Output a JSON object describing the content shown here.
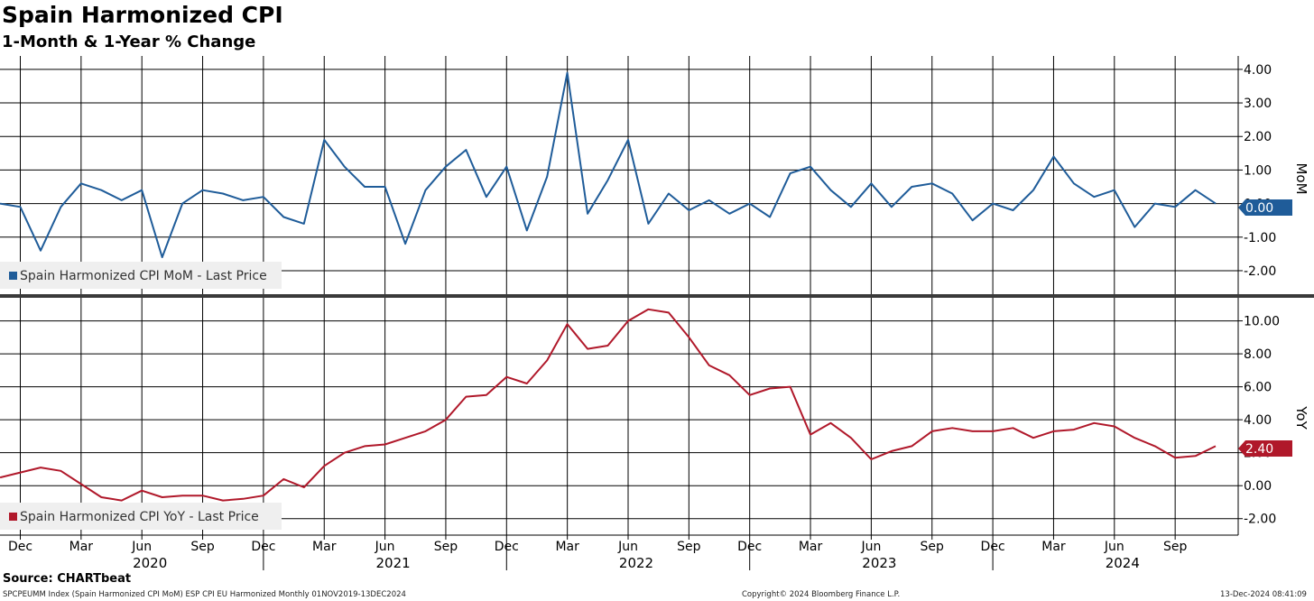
{
  "title": "Spain Harmonized CPI",
  "subtitle": "1-Month & 1-Year % Change",
  "source": "Source: CHARTbeat",
  "footer": {
    "left": "SPCPEUMM Index (Spain Harmonized CPI MoM) ESP CPI EU Harmonized  Monthly 01NOV2019-13DEC2024",
    "center": "Copyright© 2024 Bloomberg Finance L.P.",
    "right": "13-Dec-2024 08:41:09"
  },
  "x_axis": {
    "month_labels": [
      "Dec",
      "Mar",
      "Jun",
      "Sep",
      "Dec",
      "Mar",
      "Jun",
      "Sep",
      "Dec",
      "Mar",
      "Jun",
      "Sep",
      "Dec",
      "Mar",
      "Jun",
      "Sep",
      "Dec",
      "Mar",
      "Jun",
      "Sep"
    ],
    "month_label_dates": [
      "2019-12",
      "2020-03",
      "2020-06",
      "2020-09",
      "2020-12",
      "2021-03",
      "2021-06",
      "2021-09",
      "2021-12",
      "2022-03",
      "2022-06",
      "2022-09",
      "2022-12",
      "2023-03",
      "2023-06",
      "2023-09",
      "2023-12",
      "2024-03",
      "2024-06",
      "2024-09"
    ],
    "year_labels": [
      "2020",
      "2021",
      "2022",
      "2023",
      "2024"
    ],
    "year_label_dates": [
      "2020-06",
      "2021-06",
      "2022-06",
      "2023-06",
      "2024-06"
    ]
  },
  "chart_data": [
    {
      "type": "line",
      "panel": "top",
      "axis_title": "MoM",
      "ylim": [
        -2.7,
        4.4
      ],
      "yticks": [
        -2,
        -1,
        0,
        1,
        2,
        3,
        4
      ],
      "ytick_labels": [
        "-2.00",
        "-1.00",
        "0.00",
        "1.00",
        "2.00",
        "3.00",
        "4.00"
      ],
      "grid": true,
      "legend_position": "bottom-left",
      "last_value_label": "0.00",
      "series": [
        {
          "name": "Spain Harmonized CPI MoM - Last Price",
          "color": "#1f5c99",
          "x": [
            "2019-11",
            "2019-12",
            "2020-01",
            "2020-02",
            "2020-03",
            "2020-04",
            "2020-05",
            "2020-06",
            "2020-07",
            "2020-08",
            "2020-09",
            "2020-10",
            "2020-11",
            "2020-12",
            "2021-01",
            "2021-02",
            "2021-03",
            "2021-04",
            "2021-05",
            "2021-06",
            "2021-07",
            "2021-08",
            "2021-09",
            "2021-10",
            "2021-11",
            "2021-12",
            "2022-01",
            "2022-02",
            "2022-03",
            "2022-04",
            "2022-05",
            "2022-06",
            "2022-07",
            "2022-08",
            "2022-09",
            "2022-10",
            "2022-11",
            "2022-12",
            "2023-01",
            "2023-02",
            "2023-03",
            "2023-04",
            "2023-05",
            "2023-06",
            "2023-07",
            "2023-08",
            "2023-09",
            "2023-10",
            "2023-11",
            "2023-12",
            "2024-01",
            "2024-02",
            "2024-03",
            "2024-04",
            "2024-05",
            "2024-06",
            "2024-07",
            "2024-08",
            "2024-09",
            "2024-10",
            "2024-11"
          ],
          "values": [
            0.0,
            -0.1,
            -1.4,
            -0.1,
            0.6,
            0.4,
            0.1,
            0.4,
            -1.6,
            0.0,
            0.4,
            0.3,
            0.1,
            0.2,
            -0.4,
            -0.6,
            1.9,
            1.1,
            0.5,
            0.5,
            -1.2,
            0.4,
            1.1,
            1.6,
            0.2,
            1.1,
            -0.8,
            0.8,
            3.9,
            -0.3,
            0.7,
            1.9,
            -0.6,
            0.3,
            -0.2,
            0.1,
            -0.3,
            0.0,
            -0.4,
            0.9,
            1.1,
            0.4,
            -0.1,
            0.6,
            -0.1,
            0.5,
            0.6,
            0.3,
            -0.5,
            0.0,
            -0.2,
            0.4,
            1.4,
            0.6,
            0.2,
            0.4,
            -0.7,
            0.0,
            -0.1,
            0.4,
            0.0
          ]
        }
      ]
    },
    {
      "type": "line",
      "panel": "bottom",
      "axis_title": "YoY",
      "ylim": [
        -3.0,
        11.4
      ],
      "yticks": [
        -2,
        0,
        2,
        4,
        6,
        8,
        10
      ],
      "ytick_labels": [
        "-2.00",
        "0.00",
        "2.00",
        "4.00",
        "6.00",
        "8.00",
        "10.00"
      ],
      "grid": true,
      "legend_position": "bottom-left",
      "last_value_label": "2.40",
      "series": [
        {
          "name": "Spain Harmonized CPI YoY - Last Price",
          "color": "#b0182a",
          "x": [
            "2019-11",
            "2019-12",
            "2020-01",
            "2020-02",
            "2020-03",
            "2020-04",
            "2020-05",
            "2020-06",
            "2020-07",
            "2020-08",
            "2020-09",
            "2020-10",
            "2020-11",
            "2020-12",
            "2021-01",
            "2021-02",
            "2021-03",
            "2021-04",
            "2021-05",
            "2021-06",
            "2021-07",
            "2021-08",
            "2021-09",
            "2021-10",
            "2021-11",
            "2021-12",
            "2022-01",
            "2022-02",
            "2022-03",
            "2022-04",
            "2022-05",
            "2022-06",
            "2022-07",
            "2022-08",
            "2022-09",
            "2022-10",
            "2022-11",
            "2022-12",
            "2023-01",
            "2023-02",
            "2023-03",
            "2023-04",
            "2023-05",
            "2023-06",
            "2023-07",
            "2023-08",
            "2023-09",
            "2023-10",
            "2023-11",
            "2023-12",
            "2024-01",
            "2024-02",
            "2024-03",
            "2024-04",
            "2024-05",
            "2024-06",
            "2024-07",
            "2024-08",
            "2024-09",
            "2024-10",
            "2024-11"
          ],
          "values": [
            0.5,
            0.8,
            1.1,
            0.9,
            0.1,
            -0.7,
            -0.9,
            -0.3,
            -0.7,
            -0.6,
            -0.6,
            -0.9,
            -0.8,
            -0.6,
            0.4,
            -0.1,
            1.2,
            2.0,
            2.4,
            2.5,
            2.9,
            3.3,
            4.0,
            5.4,
            5.5,
            6.6,
            6.2,
            7.6,
            9.8,
            8.3,
            8.5,
            10.0,
            10.7,
            10.5,
            9.0,
            7.3,
            6.7,
            5.5,
            5.9,
            6.0,
            3.1,
            3.8,
            2.9,
            1.6,
            2.1,
            2.4,
            3.3,
            3.5,
            3.3,
            3.3,
            3.5,
            2.9,
            3.3,
            3.4,
            3.8,
            3.6,
            2.9,
            2.4,
            1.7,
            1.8,
            2.4
          ]
        }
      ]
    }
  ]
}
